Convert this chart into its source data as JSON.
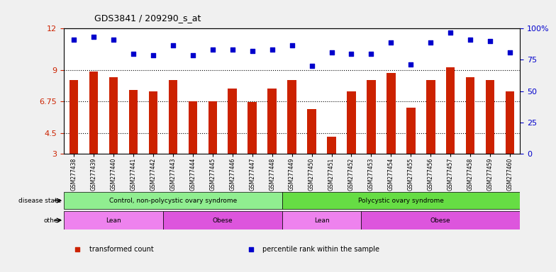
{
  "title": "GDS3841 / 209290_s_at",
  "samples": [
    "GSM277438",
    "GSM277439",
    "GSM277440",
    "GSM277441",
    "GSM277442",
    "GSM277443",
    "GSM277444",
    "GSM277445",
    "GSM277446",
    "GSM277447",
    "GSM277448",
    "GSM277449",
    "GSM277450",
    "GSM277451",
    "GSM277452",
    "GSM277453",
    "GSM277454",
    "GSM277455",
    "GSM277456",
    "GSM277457",
    "GSM277458",
    "GSM277459",
    "GSM277460"
  ],
  "bar_values": [
    8.3,
    8.9,
    8.5,
    7.6,
    7.5,
    8.3,
    6.75,
    6.75,
    7.7,
    6.7,
    7.7,
    8.3,
    6.2,
    4.2,
    7.5,
    8.3,
    8.8,
    6.3,
    8.3,
    9.2,
    8.5,
    8.3,
    7.5
  ],
  "dot_values": [
    11.2,
    11.4,
    11.2,
    10.2,
    10.1,
    10.8,
    10.1,
    10.5,
    10.5,
    10.4,
    10.5,
    10.8,
    9.3,
    10.3,
    10.2,
    10.2,
    11.0,
    9.4,
    11.0,
    11.7,
    11.2,
    11.1,
    10.3
  ],
  "ylim_left": [
    3,
    12
  ],
  "yleft_ticks": [
    3,
    4.5,
    6.75,
    9,
    12
  ],
  "yright_ticks": [
    0,
    25,
    50,
    75,
    100
  ],
  "ylim_right": [
    0,
    100
  ],
  "bar_color": "#cc2200",
  "dot_color": "#0000cc",
  "bg_color": "#f0f0f0",
  "plot_bg": "#ffffff",
  "disease_state_groups": [
    {
      "label": "Control, non-polycystic ovary syndrome",
      "start": 0,
      "end": 10,
      "color": "#90ee90"
    },
    {
      "label": "Polycystic ovary syndrome",
      "start": 11,
      "end": 22,
      "color": "#66dd44"
    }
  ],
  "other_groups": [
    {
      "label": "Lean",
      "start": 0,
      "end": 4,
      "color": "#ee82ee"
    },
    {
      "label": "Obese",
      "start": 5,
      "end": 10,
      "color": "#dd55dd"
    },
    {
      "label": "Lean",
      "start": 11,
      "end": 14,
      "color": "#ee82ee"
    },
    {
      "label": "Obese",
      "start": 15,
      "end": 22,
      "color": "#dd55dd"
    }
  ],
  "legend_items": [
    {
      "label": "transformed count",
      "color": "#cc2200",
      "marker": "s"
    },
    {
      "label": "percentile rank within the sample",
      "color": "#0000cc",
      "marker": "s"
    }
  ]
}
